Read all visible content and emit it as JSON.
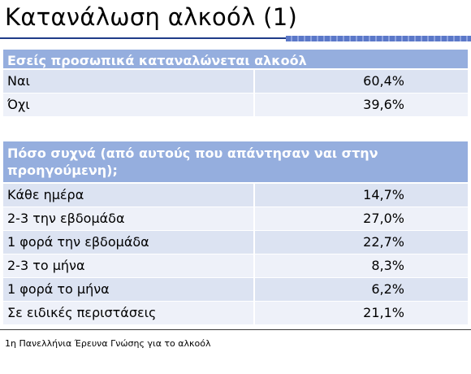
{
  "title": "Κατανάλωση αλκοόλ (1)",
  "tables": [
    {
      "header": "Εσείς προσωπικά καταναλώνεται αλκοόλ",
      "rows": [
        {
          "label": "Ναι",
          "value": "60,4%"
        },
        {
          "label": "Όχι",
          "value": "39,6%"
        }
      ]
    },
    {
      "header": "Πόσο συχνά (από αυτούς που απάντησαν ναι στην προηγούμενη);",
      "rows": [
        {
          "label": "Κάθε ημέρα",
          "value": "14,7%"
        },
        {
          "label": "2-3 την εβδομάδα",
          "value": "27,0%"
        },
        {
          "label": "1 φορά την εβδομάδα",
          "value": "22,7%"
        },
        {
          "label": "2-3 το μήνα",
          "value": "8,3%"
        },
        {
          "label": "1 φορά το μήνα",
          "value": "6,2%"
        },
        {
          "label": "Σε ειδικές περιστάσεις",
          "value": "21,1%"
        }
      ]
    }
  ],
  "footer": "1η Πανελλήνια Έρευνα Γνώσης για το αλκοόλ",
  "colors": {
    "header_bg": "#95aede",
    "row_odd": "#dce3f2",
    "row_even": "#eef1f9",
    "title_rule": "#1f3c88"
  }
}
